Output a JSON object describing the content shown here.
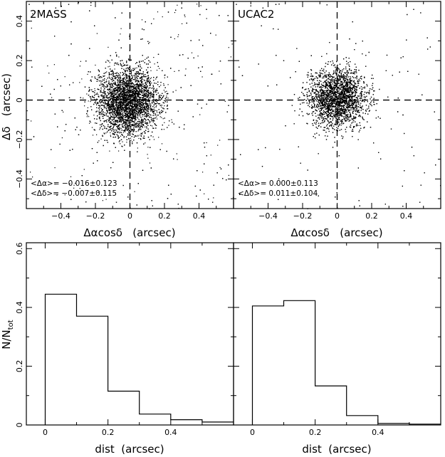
{
  "chart_data": [
    {
      "type": "scatter",
      "panel_label": "2MASS",
      "xlabel": "Δαcosδ   (arcsec)",
      "ylabel": "Δδ   (arcsec)",
      "xlim": [
        -0.6,
        0.6
      ],
      "ylim": [
        -0.55,
        0.5
      ],
      "x_ticks": [
        "-0.4",
        "-0.2",
        "0",
        "0.2",
        "0.4"
      ],
      "y_ticks": [
        "-0.4",
        "-0.2",
        "0",
        "0.2",
        "0.4"
      ],
      "mean_dalpha": -0.016,
      "sigma_dalpha": 0.123,
      "mean_ddelta": -0.007,
      "sigma_ddelta": 0.115,
      "stats_lines": [
        "<Δα>= −0.016±0.123",
        "<Δδ>= −0.007±0.115"
      ],
      "reference_lines": {
        "x": 0,
        "y": 0,
        "style": "dashed"
      },
      "points_note": "dense cloud of points around (0,0)"
    },
    {
      "type": "scatter",
      "panel_label": "UCAC2",
      "xlabel": "Δαcosδ   (arcsec)",
      "xlim": [
        -0.6,
        0.6
      ],
      "ylim": [
        -0.55,
        0.5
      ],
      "x_ticks": [
        "-0.4",
        "-0.2",
        "0",
        "0.2",
        "0.4"
      ],
      "mean_dalpha": 0.0,
      "sigma_dalpha": 0.113,
      "mean_ddelta": 0.011,
      "sigma_ddelta": 0.104,
      "stats_lines": [
        "<Δα>= 0.000±0.113",
        "<Δδ>= 0.011±0.104"
      ],
      "reference_lines": {
        "x": 0,
        "y": 0,
        "style": "dashed"
      }
    },
    {
      "type": "bar",
      "style": "step histogram",
      "xlabel": "dist  (arcsec)",
      "ylabel": "N/N",
      "ylabel_sub": "tot",
      "xlim": [
        -0.06,
        0.6
      ],
      "ylim": [
        0,
        0.62
      ],
      "x_ticks": [
        "0",
        "0.2",
        "0.4"
      ],
      "y_ticks": [
        "0",
        "0.2",
        "0.4",
        "0.6"
      ],
      "bin_edges": [
        0,
        0.1,
        0.2,
        0.3,
        0.4,
        0.5,
        0.6
      ],
      "values": [
        0.445,
        0.37,
        0.115,
        0.037,
        0.018,
        0.01
      ]
    },
    {
      "type": "bar",
      "style": "step histogram",
      "xlabel": "dist  (arcsec)",
      "xlim": [
        -0.06,
        0.6
      ],
      "ylim": [
        0,
        0.62
      ],
      "x_ticks": [
        "0",
        "0.2",
        "0.4"
      ],
      "bin_edges": [
        0,
        0.1,
        0.2,
        0.3,
        0.4,
        0.5,
        0.6
      ],
      "values": [
        0.405,
        0.423,
        0.133,
        0.032,
        0.005,
        0.003
      ]
    }
  ]
}
